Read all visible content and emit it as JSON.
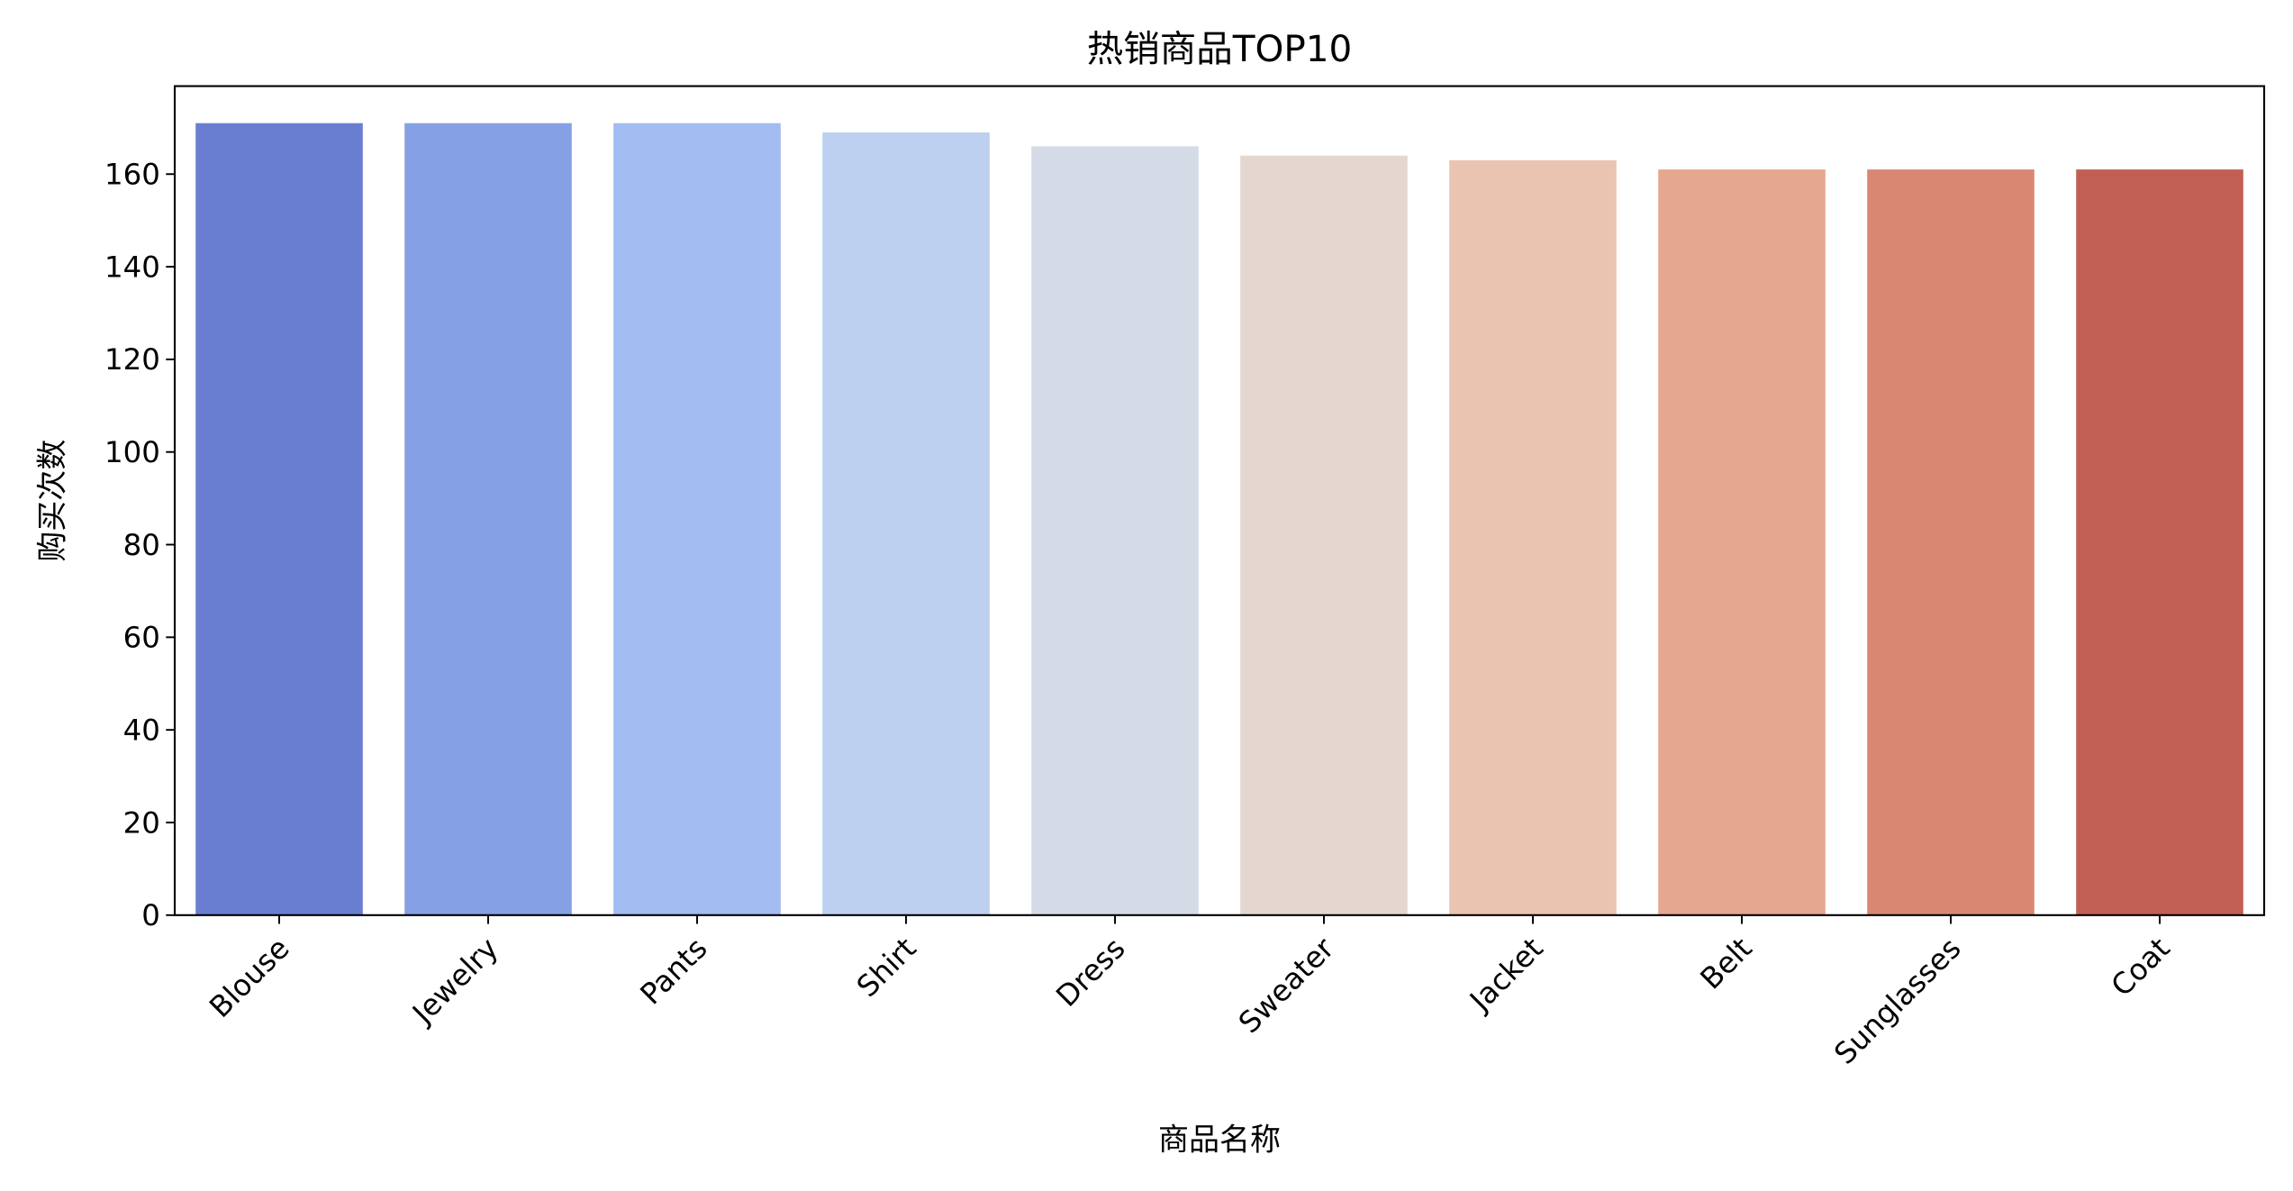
{
  "chart_data": {
    "type": "bar",
    "title": "热销商品TOP10",
    "xlabel": "商品名称",
    "ylabel": "购买次数",
    "categories": [
      "Blouse",
      "Jewelry",
      "Pants",
      "Shirt",
      "Dress",
      "Sweater",
      "Jacket",
      "Belt",
      "Sunglasses",
      "Coat"
    ],
    "values": [
      171,
      171,
      171,
      169,
      166,
      164,
      163,
      161,
      161,
      161
    ],
    "colors": [
      "#6A7ED1",
      "#85A0E4",
      "#A2BBF1",
      "#BDD0F0",
      "#D4DBE6",
      "#E4D7CF",
      "#EBC4B1",
      "#E6A78F",
      "#D88872",
      "#C25F54"
    ],
    "ylim": [
      0,
      179
    ],
    "yticks": [
      "0",
      "20",
      "40",
      "60",
      "80",
      "100",
      "120",
      "140",
      "160"
    ],
    "xtick_rotation": 45,
    "grid": false,
    "legend": "none"
  }
}
